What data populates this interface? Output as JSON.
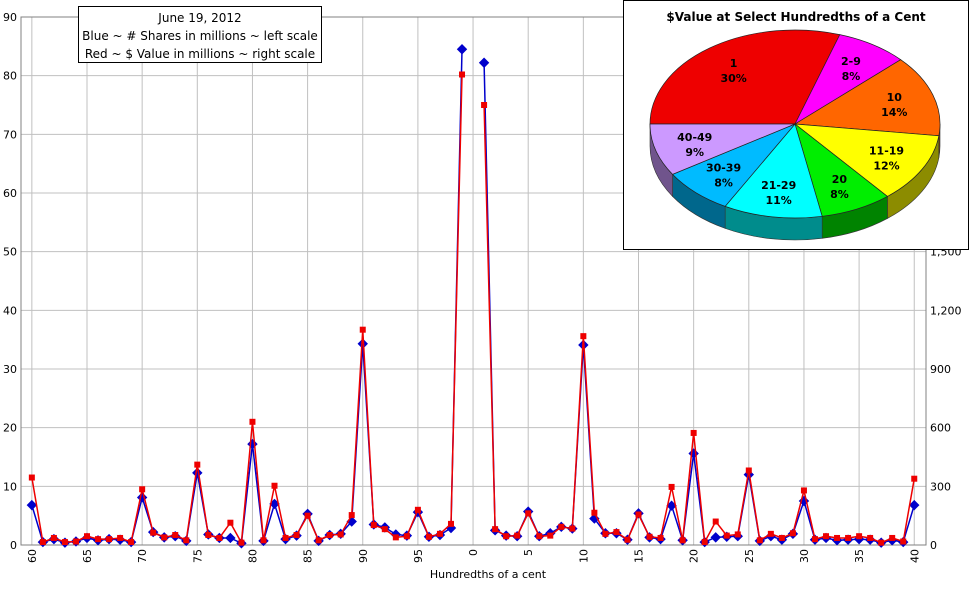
{
  "chart_data": [
    {
      "type": "line",
      "xlabel": "Hundredths of a cent",
      "x_ticks": [
        "60",
        "65",
        "70",
        "75",
        "80",
        "85",
        "90",
        "95",
        "0",
        "5",
        "10",
        "15",
        "20",
        "25",
        "30",
        "35",
        "40"
      ],
      "y_left_ticks": [
        "0",
        "10",
        "20",
        "30",
        "40",
        "50",
        "60",
        "70",
        "80",
        "90"
      ],
      "y_right_ticks": [
        "0",
        "300",
        "600",
        "900",
        "1,200",
        "1,500"
      ],
      "ylim_left": [
        0,
        90
      ],
      "ylim_right": [
        0,
        2700
      ],
      "legend_lines": [
        "June 19, 2012",
        "Blue ~ # Shares in millions ~ left scale",
        "Red ~ $ Value in millions ~ right scale"
      ],
      "grid": true,
      "series": [
        {
          "color": "#0000cc",
          "axis": "left",
          "marker": "diamond",
          "values": [
            6.8,
            0.5,
            1.0,
            0.4,
            0.6,
            1.2,
            0.8,
            1.0,
            0.9,
            0.5,
            8.1,
            2.2,
            1.3,
            1.5,
            0.7,
            12.3,
            1.8,
            1.2,
            1.2,
            0.3,
            17.2,
            0.7,
            7.0,
            1.0,
            1.6,
            5.3,
            0.7,
            1.7,
            1.9,
            4.0,
            34.3,
            3.5,
            3.0,
            1.8,
            1.6,
            5.6,
            1.4,
            1.7,
            2.9,
            84.5,
            null,
            82.2,
            2.5,
            1.6,
            1.5,
            5.7,
            1.5,
            2.0,
            3.1,
            2.8,
            34.1,
            4.5,
            2.0,
            2.0,
            0.9,
            5.4,
            1.3,
            1.0,
            6.7,
            0.8,
            15.6,
            0.5,
            1.3,
            1.4,
            1.5,
            12.0,
            0.7,
            1.5,
            0.9,
            1.9,
            7.5,
            0.9,
            1.2,
            0.8,
            0.9,
            1.0,
            0.9,
            0.4,
            0.8,
            0.5,
            6.8
          ]
        },
        {
          "color": "#ee0000",
          "axis": "right",
          "marker": "square",
          "values": [
            345,
            15,
            36,
            15,
            18,
            45,
            30,
            30,
            36,
            15,
            285,
            63,
            39,
            51,
            24,
            411,
            51,
            36,
            114,
            12,
            630,
            24,
            303,
            36,
            51,
            150,
            24,
            51,
            54,
            153,
            1101,
            102,
            81,
            39,
            45,
            180,
            42,
            57,
            108,
            2406,
            null,
            2250,
            81,
            45,
            48,
            162,
            45,
            48,
            93,
            84,
            1068,
            165,
            57,
            66,
            27,
            156,
            42,
            36,
            297,
            24,
            573,
            15,
            120,
            48,
            54,
            381,
            24,
            57,
            36,
            60,
            279,
            30,
            45,
            36,
            36,
            45,
            36,
            12,
            36,
            18,
            339
          ]
        }
      ]
    },
    {
      "type": "pie",
      "title": "$Value at Select Hundredths of a Cent",
      "slices": [
        {
          "name": "1",
          "percent": "30%",
          "value": 30,
          "color": "#ee0000"
        },
        {
          "name": "2-9",
          "percent": "8%",
          "value": 8,
          "color": "#ff00ff"
        },
        {
          "name": "10",
          "percent": "14%",
          "value": 14,
          "color": "#ff6600"
        },
        {
          "name": "11-19",
          "percent": "12%",
          "value": 12,
          "color": "#ffff00"
        },
        {
          "name": "20",
          "percent": "8%",
          "value": 8,
          "color": "#00ee00"
        },
        {
          "name": "21-29",
          "percent": "11%",
          "value": 11,
          "color": "#00ffff"
        },
        {
          "name": "30-39",
          "percent": "8%",
          "value": 8,
          "color": "#00bbff"
        },
        {
          "name": "40-49",
          "percent": "9%",
          "value": 9,
          "color": "#cc99ff"
        }
      ]
    }
  ]
}
